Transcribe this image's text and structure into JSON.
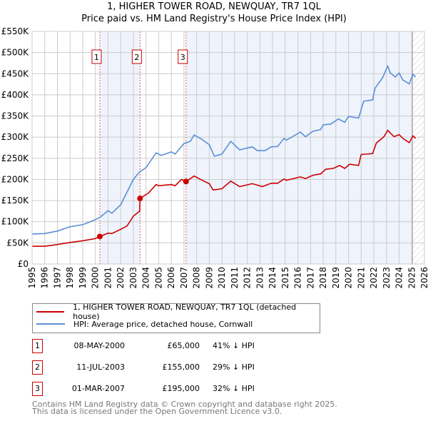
{
  "chart_data": {
    "type": "line",
    "title": "1, HIGHER TOWER ROAD, NEWQUAY, TR7 1QL",
    "subtitle": "Price paid vs. HM Land Registry's House Price Index (HPI)",
    "xlim": [
      1995,
      2026
    ],
    "ylim": [
      0,
      550000
    ],
    "y_ticks": [
      0,
      50000,
      100000,
      150000,
      200000,
      250000,
      300000,
      350000,
      400000,
      450000,
      500000,
      550000
    ],
    "y_tick_labels": [
      "£0",
      "£50K",
      "£100K",
      "£150K",
      "£200K",
      "£250K",
      "£300K",
      "£350K",
      "£400K",
      "£450K",
      "£500K",
      "£550K"
    ],
    "x_ticks": [
      1995,
      1996,
      1997,
      1998,
      1999,
      2000,
      2001,
      2002,
      2003,
      2004,
      2005,
      2006,
      2007,
      2008,
      2009,
      2010,
      2011,
      2012,
      2013,
      2014,
      2015,
      2016,
      2017,
      2018,
      2019,
      2020,
      2021,
      2022,
      2023,
      2024,
      2025,
      2026
    ],
    "grid": true,
    "forecast_hatch_from": 2025.05,
    "series": [
      {
        "name": "1, HIGHER TOWER ROAD, NEWQUAY, TR7 1QL (detached house)",
        "color": "#cc0000",
        "x": [
          1995,
          1996,
          1997,
          1998,
          1999,
          2000,
          2000.35,
          2001,
          2001.3,
          2002,
          2002.5,
          2003,
          2003.5,
          2003.53,
          2004.2,
          2004.8,
          2005,
          2006,
          2006.3,
          2006.8,
          2007.16,
          2007.8,
          2008.5,
          2009,
          2009.3,
          2010,
          2010.7,
          2011.4,
          2012.4,
          2013.2,
          2013.9,
          2014.4,
          2014.9,
          2015.1,
          2016.2,
          2016.6,
          2017.2,
          2017.8,
          2018.2,
          2018.8,
          2019.3,
          2019.7,
          2020.1,
          2020.8,
          2021.0,
          2021.9,
          2022.2,
          2022.8,
          2023.1,
          2023.6,
          2024.0,
          2024.3,
          2024.8,
          2025.1,
          2025.3
        ],
        "y": [
          42000,
          42000,
          46000,
          51000,
          55000,
          60000,
          65000,
          73000,
          72000,
          82000,
          90000,
          113000,
          125000,
          155000,
          168000,
          188000,
          185000,
          188000,
          185000,
          200000,
          195000,
          208000,
          197000,
          190000,
          175000,
          178000,
          196000,
          183000,
          190000,
          183000,
          191000,
          191000,
          201000,
          198000,
          206000,
          202000,
          210000,
          213000,
          224000,
          226000,
          233000,
          226000,
          236000,
          233000,
          259000,
          261000,
          286000,
          301000,
          316000,
          301000,
          306000,
          297000,
          287000,
          303000,
          297000
        ]
      },
      {
        "name": "HPI: Average price, detached house, Cornwall",
        "color": "#5b8fd4",
        "x": [
          1995,
          1996,
          1997,
          1998,
          1999,
          2000,
          2000.35,
          2001,
          2001.3,
          2002,
          2003,
          2003.5,
          2004,
          2004.8,
          2005.2,
          2006,
          2006.3,
          2007,
          2007.5,
          2007.8,
          2008.4,
          2009,
          2009.4,
          2010,
          2010.7,
          2011.4,
          2012.4,
          2012.8,
          2013.4,
          2013.9,
          2014.4,
          2014.9,
          2015.1,
          2016.2,
          2016.6,
          2017.2,
          2017.8,
          2018.0,
          2018.6,
          2019.2,
          2019.7,
          2020.0,
          2020.8,
          2021.2,
          2021.9,
          2022.1,
          2022.7,
          2023.1,
          2023.3,
          2023.7,
          2024.0,
          2024.3,
          2024.8,
          2025.1,
          2025.3
        ],
        "y": [
          71000,
          72000,
          78000,
          88000,
          93000,
          105000,
          110000,
          126000,
          120000,
          140000,
          200000,
          218000,
          228000,
          263000,
          257000,
          265000,
          260000,
          285000,
          290000,
          305000,
          295000,
          282000,
          255000,
          260000,
          290000,
          270000,
          277000,
          268000,
          268000,
          277000,
          278000,
          297000,
          293000,
          312000,
          301000,
          314000,
          318000,
          329000,
          331000,
          343000,
          335000,
          349000,
          345000,
          385000,
          388000,
          416000,
          441000,
          468000,
          452000,
          442000,
          452000,
          435000,
          426000,
          449000,
          442000
        ]
      }
    ],
    "sales": [
      {
        "label": "1",
        "x": 2000.35,
        "price": 65000,
        "date": "08-MAY-2000",
        "price_text": "£65,000",
        "hpi_text": "41% ↓ HPI"
      },
      {
        "label": "2",
        "x": 2003.53,
        "price": 155000,
        "date": "11-JUL-2003",
        "price_text": "£155,000",
        "hpi_text": "29% ↓ HPI"
      },
      {
        "label": "3",
        "x": 2007.16,
        "price": 195000,
        "date": "01-MAR-2007",
        "price_text": "£195,000",
        "hpi_text": "32% ↓ HPI"
      }
    ]
  },
  "footer": {
    "line1": "Contains HM Land Registry data © Crown copyright and database right 2025.",
    "line2": "This data is licensed under the Open Government Licence v3.0."
  }
}
